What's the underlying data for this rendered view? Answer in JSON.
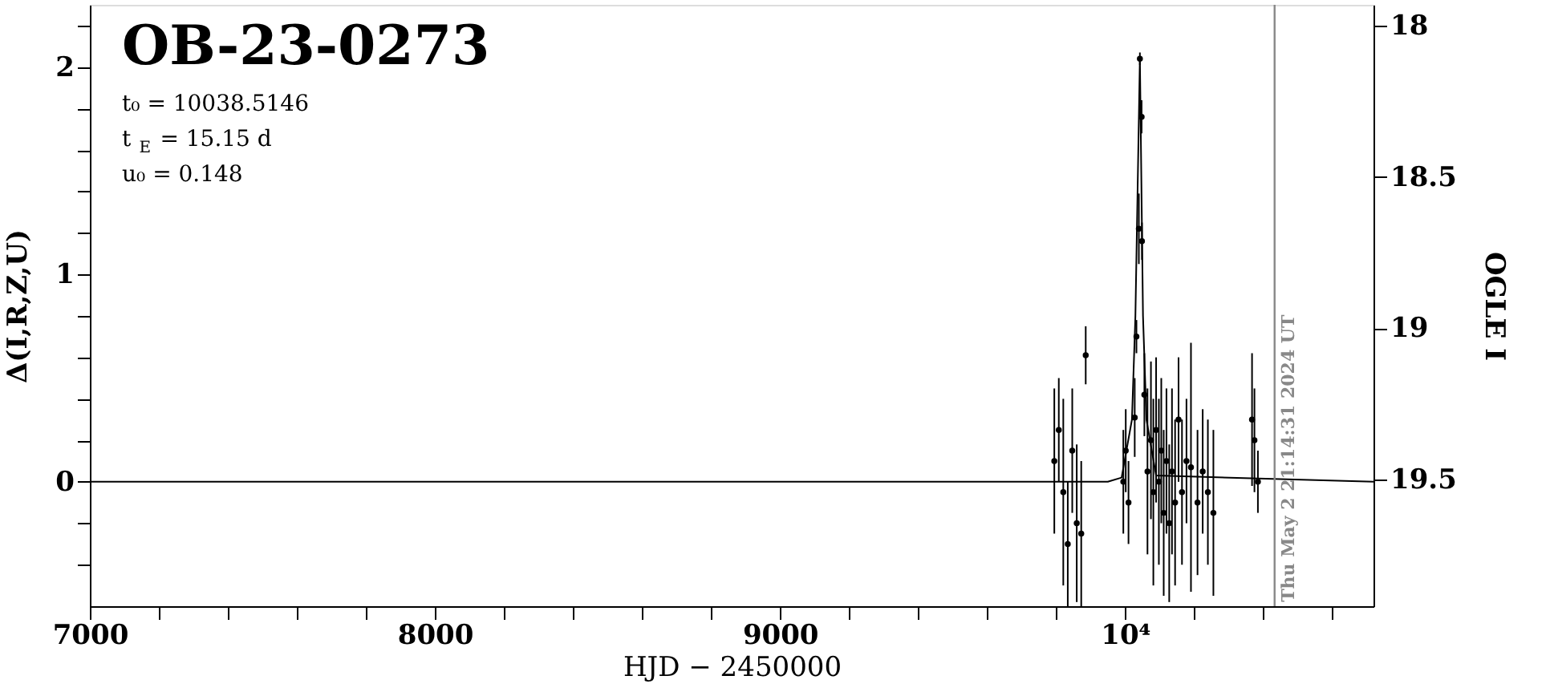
{
  "chart_data": {
    "type": "scatter",
    "title": "OB-23-0273",
    "xlabel": "HJD − 2450000",
    "ylabel": "Δ(I,R,Z,U)",
    "y2label": "OGLE I",
    "annotations": [
      "t₀ = 10038.5146",
      "t$_{E}$ = 15.15 d",
      "u₀ = 0.148",
      {
        "text": "Thu May  2 21:14:31 2024 UT",
        "x": 10433.4,
        "y": -0.58
      }
    ],
    "xlim": [
      7000,
      10720
    ],
    "xticks": [
      7000,
      {
        "value": 7200,
        "label": null
      },
      {
        "value": 7400,
        "label": null
      },
      {
        "value": 7600,
        "label": null
      },
      {
        "value": 7800,
        "label": null
      },
      8000,
      {
        "value": 8200,
        "label": null
      },
      {
        "value": 8400,
        "label": null
      },
      {
        "value": 8600,
        "label": null
      },
      {
        "value": 8800,
        "label": null
      },
      9000,
      {
        "value": 9200,
        "label": null
      },
      {
        "value": 9400,
        "label": null
      },
      {
        "value": 9600,
        "label": null
      },
      {
        "value": 9800,
        "label": null
      },
      {
        "value": 10000,
        "label": "10⁴"
      },
      {
        "value": 10200,
        "label": null
      },
      {
        "value": 10400,
        "label": null
      },
      {
        "value": 10600,
        "label": null
      }
    ],
    "ylim": [
      -0.6,
      2.3
    ],
    "yticks": [
      {
        "value": -0.4,
        "label": null
      },
      {
        "value": -0.2,
        "label": null
      },
      0,
      {
        "value": 0.2,
        "label": null
      },
      {
        "value": 0.4,
        "label": null
      },
      {
        "value": 0.6,
        "label": null
      },
      {
        "value": 0.8,
        "label": null
      },
      1,
      {
        "value": 1.2,
        "label": null
      },
      {
        "value": 1.4,
        "label": null
      },
      {
        "value": 1.6,
        "label": null
      },
      {
        "value": 1.8,
        "label": null
      },
      2,
      {
        "value": 2.2,
        "label": null
      }
    ],
    "y2lim": [
      19.92,
      17.93
    ],
    "y2ticks": [
      18,
      18.5,
      19,
      19.5
    ],
    "ref_lines": [
      {
        "axis": "x",
        "value": 10433.4,
        "color": "#888888"
      }
    ],
    "series": [
      {
        "type": "line",
        "color": "#000000",
        "line_style": "solid",
        "x": [
          7000,
          9950,
          9990,
          10020,
          10030,
          10043,
          10052,
          10062,
          10090,
          10720
        ],
        "values": [
          0,
          0,
          0.02,
          0.3,
          0.8,
          2.04,
          0.8,
          0.3,
          0.03,
          0
        ]
      },
      {
        "color": "#000000",
        "marker": "circle",
        "x": [
          9795,
          9808,
          9821,
          9834,
          9847,
          9860,
          9873,
          9886,
          9995,
          10002,
          10010,
          10028,
          10033,
          10040,
          10043,
          10048,
          10049,
          10056,
          10065,
          10075,
          10082,
          10090,
          10098,
          10105,
          10112,
          10120,
          10128,
          10136,
          10145,
          10155,
          10165,
          10178,
          10191,
          10210,
          10225,
          10240,
          10256,
          10368,
          10375,
          10385
        ],
        "values": [
          0.1,
          0.25,
          -0.05,
          -0.3,
          0.15,
          -0.2,
          -0.25,
          0.61,
          0.0,
          0.15,
          -0.1,
          0.31,
          0.7,
          1.22,
          2.04,
          1.76,
          1.16,
          0.42,
          0.05,
          0.2,
          -0.05,
          0.25,
          0,
          0.15,
          -0.15,
          0.1,
          -0.2,
          0.05,
          -0.1,
          0.3,
          -0.05,
          0.1,
          0.07,
          -0.1,
          0.05,
          -0.05,
          -0.15,
          0.3,
          0.2,
          0
        ],
        "errors": [
          0.35,
          0.25,
          0.45,
          0.3,
          0.3,
          0.38,
          0.35,
          0.14,
          0.25,
          0.2,
          0.2,
          0.19,
          0.08,
          0.17,
          0.03,
          0.08,
          0.09,
          0.2,
          0.4,
          0.38,
          0.45,
          0.35,
          0.4,
          0.35,
          0.4,
          0.35,
          0.38,
          0.4,
          0.4,
          0.3,
          0.35,
          0.3,
          0.6,
          0.35,
          0.3,
          0.35,
          0.4,
          0.32,
          0.25,
          0.15
        ]
      }
    ]
  }
}
